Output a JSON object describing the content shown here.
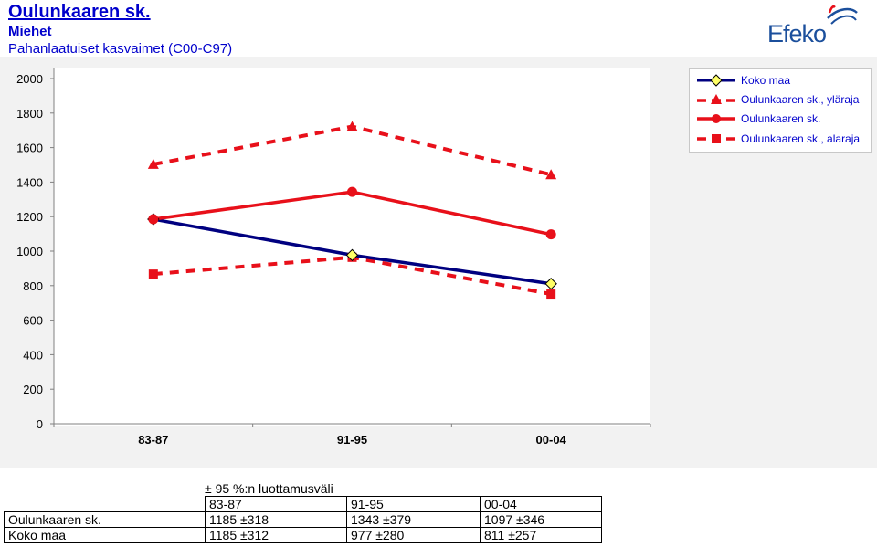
{
  "header": {
    "title": "Oulunkaaren sk.",
    "subtitle1": "Miehet",
    "subtitle2": "Pahanlaatuiset kasvaimet (C00-C97)",
    "logo_text": "Efeko"
  },
  "colors": {
    "plot_background": "#ffffff",
    "outer_background": "#f2f2f2",
    "koko_maa": "#000080",
    "region": "#e8101a",
    "marker_fill_koko": "#ffff66"
  },
  "chart_data": {
    "type": "line",
    "categories": [
      "83-87",
      "91-95",
      "00-04"
    ],
    "ylim": [
      0,
      2000
    ],
    "yticks": [
      0,
      200,
      400,
      600,
      800,
      1000,
      1200,
      1400,
      1600,
      1800,
      2000
    ],
    "grid": false,
    "legend_position": "top-right",
    "series": [
      {
        "name": "Koko maa",
        "values": [
          1185,
          977,
          811
        ],
        "style": "solid",
        "marker": "diamond",
        "color": "#000080"
      },
      {
        "name": "Oulunkaaren sk., yläraja",
        "values": [
          1503,
          1722,
          1443
        ],
        "style": "dashed",
        "marker": "triangle",
        "color": "#e8101a"
      },
      {
        "name": "Oulunkaaren sk.",
        "values": [
          1185,
          1343,
          1097
        ],
        "style": "solid",
        "marker": "circle",
        "color": "#e8101a"
      },
      {
        "name": "Oulunkaaren sk., alaraja",
        "values": [
          867,
          964,
          751
        ],
        "style": "dashed",
        "marker": "square",
        "color": "#e8101a"
      }
    ]
  },
  "table": {
    "caption": "± 95 %:n luottamusväli",
    "headers": [
      "",
      "83-87",
      "91-95",
      "00-04"
    ],
    "rows": [
      [
        "Oulunkaaren sk.",
        "1185 ±318",
        "1343 ±379",
        "1097 ±346"
      ],
      [
        "Koko maa",
        "1185 ±312",
        "977 ±280",
        "811 ±257"
      ]
    ]
  }
}
